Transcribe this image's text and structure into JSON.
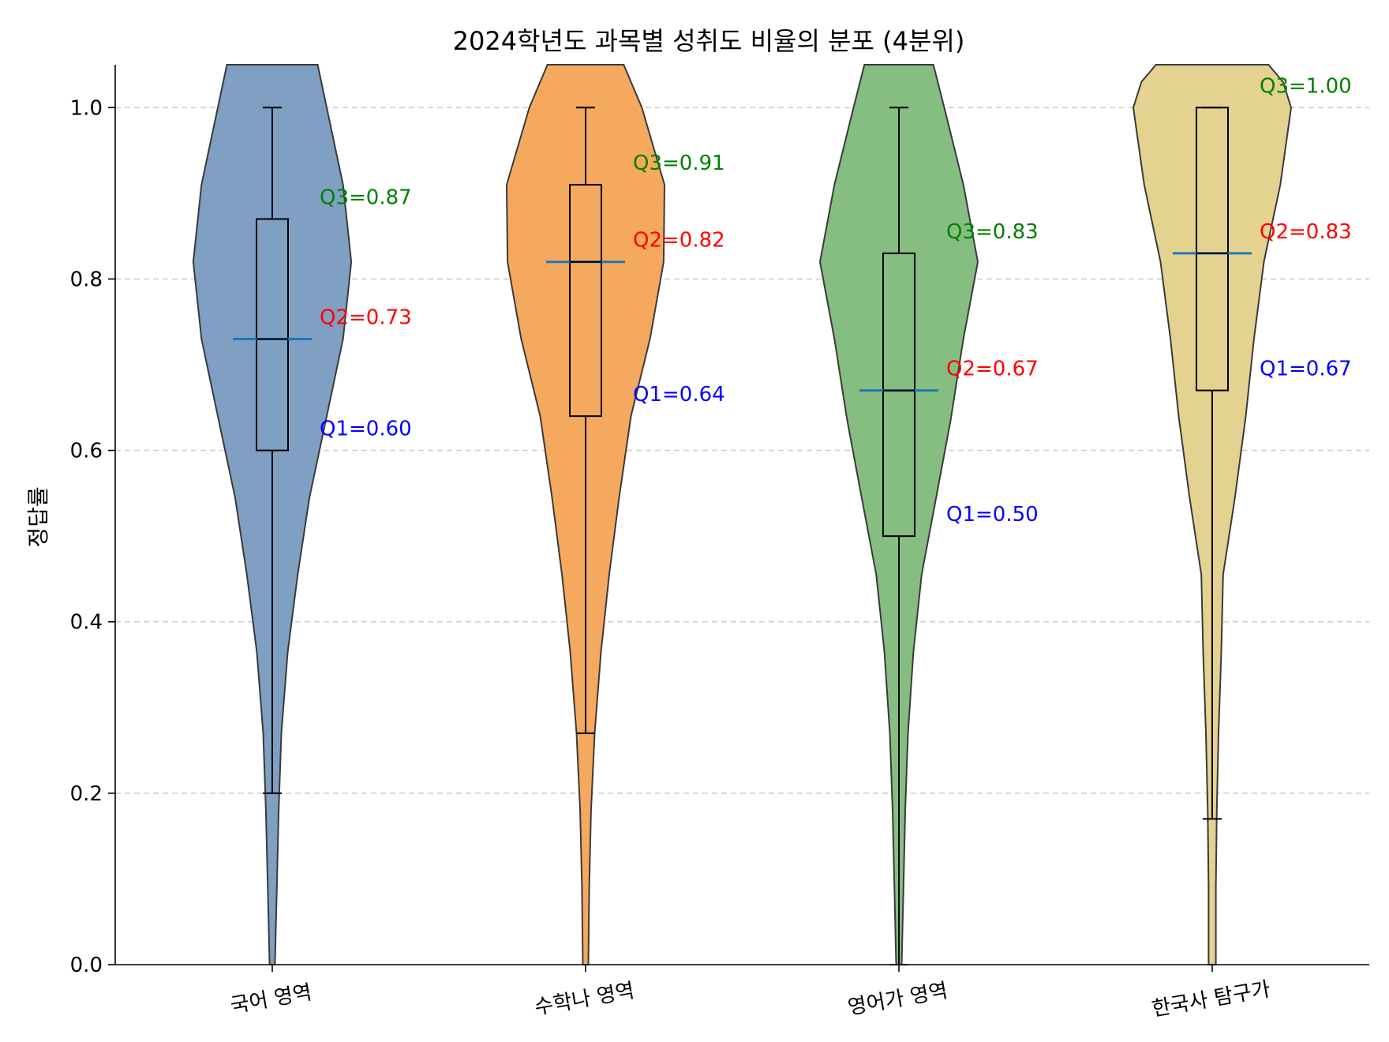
{
  "chart_data": {
    "type": "violin",
    "title": "2024학년도 과목별 성취도 비율의 분포 (4분위)",
    "ylabel": "정답률",
    "xlabel": "",
    "ylim": [
      0,
      1.05
    ],
    "yticks": [
      0.0,
      0.2,
      0.4,
      0.6,
      0.8,
      1.0
    ],
    "ytick_labels": [
      "0.0",
      "0.2",
      "0.4",
      "0.6",
      "0.8",
      "1.0"
    ],
    "grid": "y-dashed",
    "categories": [
      "국어 영역",
      "수학나 영역",
      "영어가 영역",
      "한국사 탐구가"
    ],
    "colors": [
      "#7f9fc3",
      "#f5a95e",
      "#86bd80",
      "#e4d291"
    ],
    "median_line_color": "#1f77b4",
    "annotation_colors": {
      "q3": "#008000",
      "q2": "#ff0000",
      "q1": "#0000ff"
    },
    "series": [
      {
        "whisker_low": 0.2,
        "q1": 0.6,
        "median": 0.73,
        "q3": 0.87,
        "whisker_high": 1.0,
        "q1_label": "Q1=0.60",
        "q2_label": "Q2=0.73",
        "q3_label": "Q3=0.87",
        "violin_y": [
          0.0,
          0.09,
          0.18,
          0.27,
          0.365,
          0.455,
          0.545,
          0.64,
          0.73,
          0.82,
          0.91,
          1.0,
          1.05
        ],
        "violin_halfwidth": [
          0.03,
          0.05,
          0.07,
          0.1,
          0.17,
          0.28,
          0.41,
          0.6,
          0.78,
          0.87,
          0.78,
          0.6,
          0.5
        ]
      },
      {
        "whisker_low": 0.27,
        "q1": 0.64,
        "median": 0.82,
        "q3": 0.91,
        "whisker_high": 1.0,
        "q1_label": "Q1=0.64",
        "q2_label": "Q2=0.82",
        "q3_label": "Q3=0.91",
        "violin_y": [
          0.0,
          0.09,
          0.18,
          0.27,
          0.365,
          0.455,
          0.545,
          0.64,
          0.73,
          0.82,
          0.91,
          1.0,
          1.05
        ],
        "violin_halfwidth": [
          0.03,
          0.04,
          0.06,
          0.1,
          0.17,
          0.26,
          0.37,
          0.5,
          0.71,
          0.86,
          0.87,
          0.62,
          0.42
        ]
      },
      {
        "whisker_low": 0.0,
        "q1": 0.5,
        "median": 0.67,
        "q3": 0.83,
        "whisker_high": 1.0,
        "q1_label": "Q1=0.50",
        "q2_label": "Q2=0.67",
        "q3_label": "Q3=0.83",
        "violin_y": [
          0.0,
          0.09,
          0.18,
          0.27,
          0.365,
          0.455,
          0.545,
          0.635,
          0.73,
          0.82,
          0.91,
          1.0,
          1.05
        ],
        "violin_halfwidth": [
          0.03,
          0.05,
          0.07,
          0.1,
          0.16,
          0.25,
          0.41,
          0.57,
          0.71,
          0.87,
          0.71,
          0.5,
          0.38
        ]
      },
      {
        "whisker_low": 0.17,
        "q1": 0.67,
        "median": 0.83,
        "q3": 1.0,
        "whisker_high": 1.0,
        "q1_label": "Q1=0.67",
        "q2_label": "Q2=0.83",
        "q3_label": "Q3=1.00",
        "violin_y": [
          0.0,
          0.09,
          0.18,
          0.27,
          0.365,
          0.455,
          0.545,
          0.64,
          0.73,
          0.82,
          0.91,
          1.0,
          1.03,
          1.05
        ],
        "violin_halfwidth": [
          0.04,
          0.04,
          0.05,
          0.07,
          0.1,
          0.12,
          0.25,
          0.37,
          0.46,
          0.57,
          0.75,
          0.87,
          0.78,
          0.62
        ]
      }
    ]
  }
}
